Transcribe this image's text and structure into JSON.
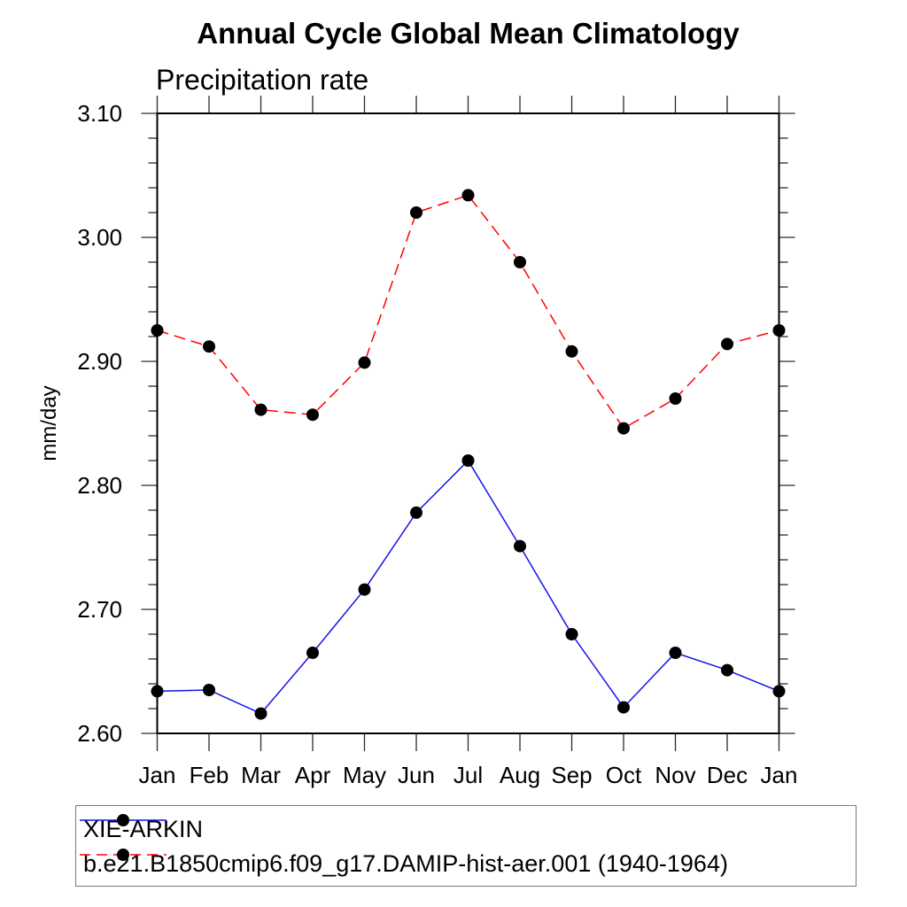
{
  "chart_data": {
    "type": "line",
    "title": "Annual Cycle Global Mean Climatology",
    "subtitle_left": "Precipitation rate",
    "ylabel": "mm/day",
    "x_categories": [
      "Jan",
      "Feb",
      "Mar",
      "Apr",
      "May",
      "Jun",
      "Jul",
      "Aug",
      "Sep",
      "Oct",
      "Nov",
      "Dec",
      "Jan"
    ],
    "ylim": [
      2.6,
      3.1
    ],
    "ytick_step": 0.1,
    "ytick_labels": [
      "2.60",
      "2.70",
      "2.80",
      "2.90",
      "3.00",
      "3.10"
    ],
    "minor_tick_step": 0.02,
    "grid": false,
    "legend_position": "bottom-left-box",
    "series": [
      {
        "name": "XIE-ARKIN",
        "color": "#1414e6",
        "line_style": "solid",
        "marker": "filled-circle",
        "marker_color": "#000000",
        "values": [
          2.634,
          2.635,
          2.616,
          2.665,
          2.716,
          2.778,
          2.82,
          2.751,
          2.68,
          2.621,
          2.665,
          2.651,
          2.634
        ]
      },
      {
        "name": "b.e21.B1850cmip6.f09_g17.DAMIP-hist-aer.001 (1940-1964)",
        "color": "#ff0000",
        "line_style": "dashed",
        "marker": "filled-circle",
        "marker_color": "#000000",
        "values": [
          2.925,
          2.912,
          2.861,
          2.857,
          2.899,
          3.02,
          3.034,
          2.98,
          2.908,
          2.846,
          2.87,
          2.914,
          2.925
        ]
      }
    ]
  }
}
